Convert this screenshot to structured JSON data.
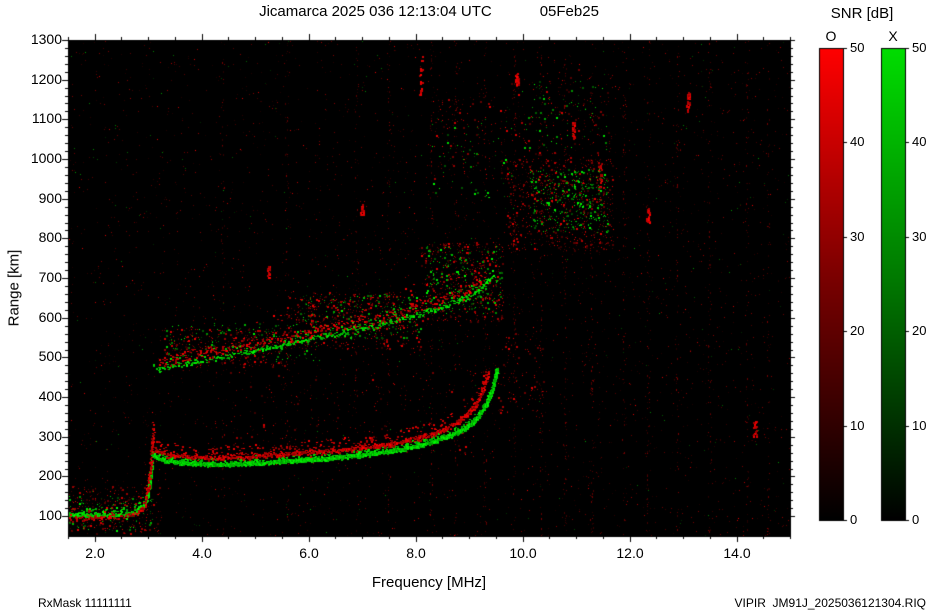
{
  "header": {
    "title": "Jicamarca 2025 036 12:13:04 UTC",
    "date": "05Feb25"
  },
  "colorbar_panel": {
    "label": "SNR [dB]",
    "o_label": "O",
    "x_label": "X"
  },
  "footer": {
    "rx_mask": "RxMask 11111111",
    "file": "VIPIR  JM91J_2025036121304.RIQ"
  },
  "chart_data": {
    "type": "heatmap",
    "title": "Jicamarca 2025 036 12:13:04 UTC",
    "subtitle": "05Feb25",
    "xlabel": "Frequency [MHz]",
    "ylabel": "Range [km]",
    "xlim": [
      1.5,
      15.0
    ],
    "ylim": [
      50,
      1300
    ],
    "background": "#000000",
    "frame_color": "#000000",
    "x_major_ticks": [
      2.0,
      4.0,
      6.0,
      8.0,
      10.0,
      12.0,
      14.0
    ],
    "x_tick_labels": [
      "2.0",
      "4.0",
      "6.0",
      "8.0",
      "10.0",
      "12.0",
      "14.0"
    ],
    "x_minor_step": 0.5,
    "y_major_ticks": [
      100,
      200,
      300,
      400,
      500,
      600,
      700,
      800,
      900,
      1000,
      1100,
      1200,
      1300
    ],
    "y_minor_step": 20,
    "legend_position": "right",
    "colorbars": [
      {
        "name": "O",
        "mode": "ordinary",
        "min": 0,
        "max": 50,
        "ticks": [
          0,
          10,
          20,
          30,
          40,
          50
        ],
        "top_color": "#ff0000",
        "mid_color": "#770000",
        "bottom_color": "#000000"
      },
      {
        "name": "X",
        "mode": "extraordinary",
        "min": 0,
        "max": 50,
        "ticks": [
          0,
          10,
          20,
          30,
          40,
          50
        ],
        "top_color": "#00dd00",
        "mid_color": "#007700",
        "bottom_color": "#000000"
      }
    ],
    "traces": [
      {
        "name": "ground-echo-x",
        "color": "green",
        "density": 4,
        "halfwidth": 3,
        "spread": 18,
        "pts": [
          [
            1.52,
            104
          ],
          [
            1.9,
            102
          ],
          [
            2.3,
            102
          ],
          [
            2.6,
            105
          ],
          [
            2.78,
            111
          ],
          [
            2.9,
            122
          ],
          [
            2.98,
            145
          ],
          [
            3.03,
            185
          ],
          [
            3.07,
            230
          ]
        ]
      },
      {
        "name": "ground-echo-o",
        "color": "red",
        "density": 1.4,
        "halfwidth": 5,
        "spread": 40,
        "pts": [
          [
            1.52,
            96
          ],
          [
            2.0,
            95
          ],
          [
            2.5,
            99
          ],
          [
            2.8,
            107
          ],
          [
            2.93,
            125
          ],
          [
            3.0,
            170
          ],
          [
            3.06,
            250
          ],
          [
            3.1,
            320
          ]
        ]
      },
      {
        "name": "f-trace-x",
        "color": "green",
        "density": 6,
        "halfwidth": 3,
        "spread": 14,
        "pts": [
          [
            3.08,
            252
          ],
          [
            3.3,
            240
          ],
          [
            3.7,
            233
          ],
          [
            4.3,
            230
          ],
          [
            5.0,
            233
          ],
          [
            5.7,
            239
          ],
          [
            6.4,
            246
          ],
          [
            7.0,
            254
          ],
          [
            7.6,
            265
          ],
          [
            8.1,
            279
          ],
          [
            8.5,
            295
          ],
          [
            8.9,
            318
          ],
          [
            9.15,
            345
          ],
          [
            9.32,
            380
          ],
          [
            9.45,
            425
          ],
          [
            9.52,
            470
          ]
        ]
      },
      {
        "name": "f-trace-o",
        "color": "red",
        "density": 3,
        "halfwidth": 4,
        "spread": 30,
        "pts": [
          [
            3.05,
            270
          ],
          [
            3.4,
            254
          ],
          [
            4.0,
            248
          ],
          [
            4.8,
            250
          ],
          [
            5.6,
            256
          ],
          [
            6.3,
            263
          ],
          [
            7.0,
            272
          ],
          [
            7.6,
            284
          ],
          [
            8.1,
            298
          ],
          [
            8.5,
            316
          ],
          [
            8.8,
            338
          ],
          [
            9.05,
            365
          ],
          [
            9.2,
            398
          ],
          [
            9.3,
            435
          ],
          [
            9.36,
            462
          ]
        ]
      },
      {
        "name": "second-hop-x",
        "color": "green",
        "density": 1.3,
        "halfwidth": 4,
        "spread": 25,
        "pts": [
          [
            3.1,
            468
          ],
          [
            3.6,
            482
          ],
          [
            4.2,
            497
          ],
          [
            5.0,
            517
          ],
          [
            5.8,
            540
          ],
          [
            6.6,
            562
          ],
          [
            7.3,
            582
          ],
          [
            8.0,
            606
          ],
          [
            8.6,
            630
          ],
          [
            9.0,
            655
          ],
          [
            9.25,
            678
          ],
          [
            9.45,
            708
          ]
        ]
      },
      {
        "name": "second-hop-o",
        "color": "red",
        "density": 1.1,
        "halfwidth": 9,
        "spread": 60,
        "pts": [
          [
            3.2,
            490
          ],
          [
            4.0,
            510
          ],
          [
            5.0,
            535
          ],
          [
            6.0,
            562
          ],
          [
            7.0,
            590
          ],
          [
            7.8,
            615
          ],
          [
            8.5,
            645
          ],
          [
            9.0,
            672
          ],
          [
            9.3,
            700
          ]
        ]
      }
    ],
    "patches": [
      {
        "color": "red",
        "f": [
          3.3,
          5.6
        ],
        "r": [
          478,
          575
        ],
        "count": 300
      },
      {
        "color": "green",
        "f": [
          3.3,
          6.2
        ],
        "r": [
          488,
          585
        ],
        "count": 170
      },
      {
        "color": "red",
        "f": [
          5.6,
          8.1
        ],
        "r": [
          520,
          665
        ],
        "count": 480
      },
      {
        "color": "green",
        "f": [
          5.8,
          8.1
        ],
        "r": [
          545,
          660
        ],
        "count": 210
      },
      {
        "color": "red",
        "f": [
          8.1,
          9.65
        ],
        "r": [
          590,
          790
        ],
        "count": 420
      },
      {
        "color": "green",
        "f": [
          8.2,
          9.6
        ],
        "r": [
          610,
          780
        ],
        "count": 230
      },
      {
        "color": "red",
        "f": [
          9.7,
          11.7
        ],
        "r": [
          770,
          1000
        ],
        "count": 600
      },
      {
        "color": "green",
        "f": [
          10.15,
          11.6
        ],
        "r": [
          815,
          975
        ],
        "count": 330
      },
      {
        "color": "red",
        "f": [
          1.5,
          3.25
        ],
        "r": [
          55,
          175
        ],
        "count": 260
      },
      {
        "color": "green",
        "f": [
          1.5,
          3.1
        ],
        "r": [
          58,
          150
        ],
        "count": 100
      },
      {
        "color": "red",
        "f": [
          4.2,
          9.4
        ],
        "r": [
          255,
          470
        ],
        "count": 140
      },
      {
        "color": "red",
        "f": [
          9.55,
          10.4
        ],
        "r": [
          360,
          560
        ],
        "count": 90
      },
      {
        "color": "red",
        "f": [
          8.3,
          9.7
        ],
        "r": [
          950,
          1150
        ],
        "count": 90
      },
      {
        "color": "green",
        "f": [
          8.3,
          9.8
        ],
        "r": [
          900,
          1100
        ],
        "count": 60
      },
      {
        "color": "red",
        "f": [
          9.8,
          11.8
        ],
        "r": [
          1000,
          1230
        ],
        "count": 120
      },
      {
        "color": "green",
        "f": [
          10.0,
          11.6
        ],
        "r": [
          1020,
          1200
        ],
        "count": 70
      }
    ],
    "rfi_columns": [
      [
        4.4,
        50
      ],
      [
        5.6,
        60
      ],
      [
        6.9,
        70
      ],
      [
        7.5,
        60
      ],
      [
        8.3,
        80
      ],
      [
        8.75,
        60
      ],
      [
        9.3,
        70
      ],
      [
        9.85,
        90
      ],
      [
        10.35,
        80
      ],
      [
        10.8,
        90
      ],
      [
        11.3,
        80
      ],
      [
        11.9,
        60
      ],
      [
        12.35,
        90
      ],
      [
        12.9,
        70
      ],
      [
        13.5,
        80
      ],
      [
        14.2,
        70
      ],
      [
        14.6,
        60
      ]
    ],
    "rfi_marks": [
      [
        8.1,
        1150,
        1260
      ],
      [
        10.95,
        1050,
        1095
      ],
      [
        11.45,
        925,
        995
      ],
      [
        13.1,
        1120,
        1170
      ],
      [
        12.35,
        840,
        875
      ],
      [
        9.9,
        1185,
        1215
      ],
      [
        7.0,
        858,
        888
      ],
      [
        14.35,
        295,
        340
      ],
      [
        5.25,
        700,
        730
      ]
    ],
    "noise": {
      "dim_red": 2800,
      "bright_red": 300,
      "dim_green": 260
    }
  }
}
